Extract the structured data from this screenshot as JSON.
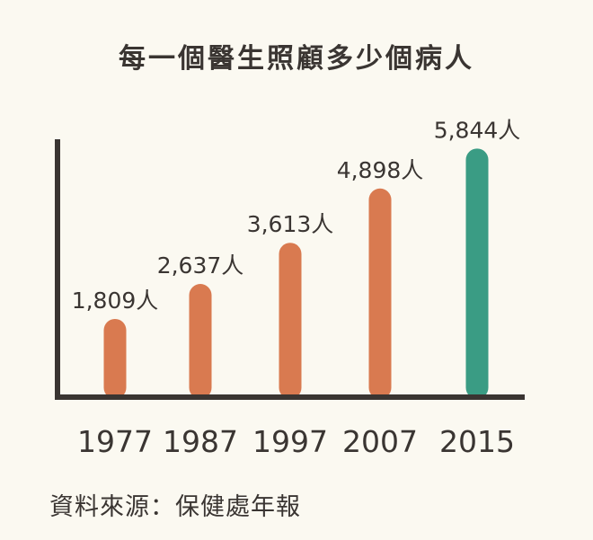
{
  "chart_data": {
    "type": "bar",
    "title": "每一個醫生照顧多少個病人",
    "categories": [
      "1977",
      "1987",
      "1997",
      "2007",
      "2015"
    ],
    "values": [
      1809,
      2637,
      3613,
      4898,
      5844
    ],
    "value_labels": [
      "1,809人",
      "2,637人",
      "3,613人",
      "4,898人",
      "5,844人"
    ],
    "ylim": [
      0,
      6000
    ],
    "grid": false,
    "colors": {
      "default": "#d97a50",
      "highlight": "#3a9c84",
      "axis": "#3a3532"
    },
    "highlight_index": 4
  },
  "source": "資料來源：保健處年報"
}
